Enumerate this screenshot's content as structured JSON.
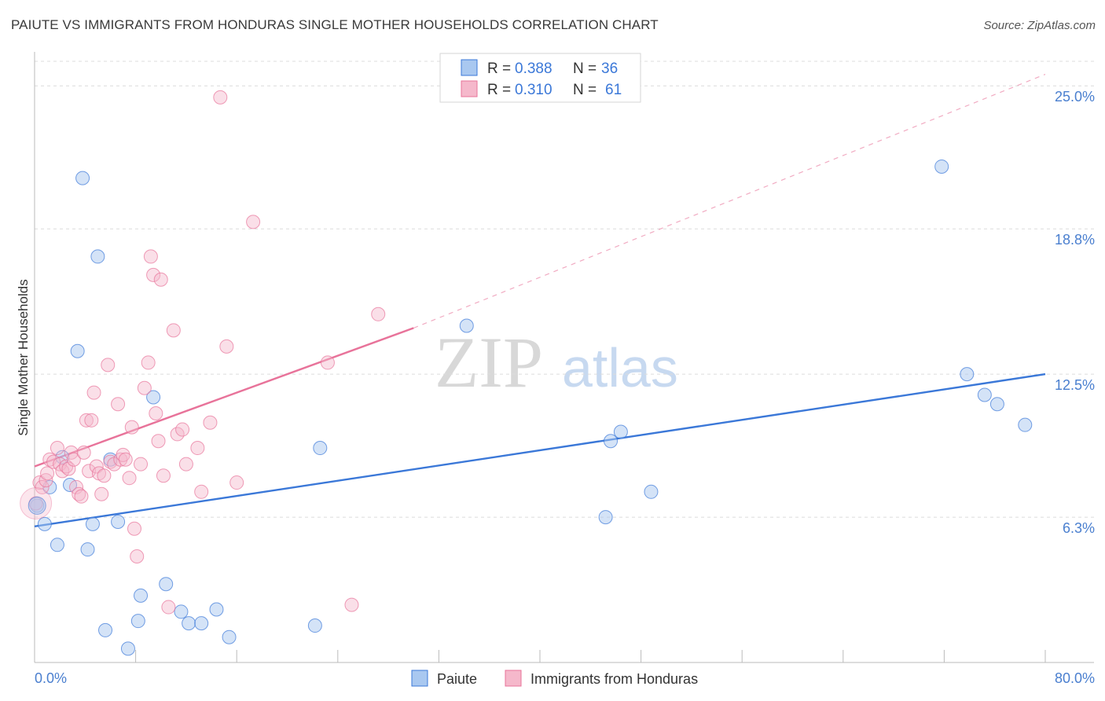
{
  "header": {
    "title": "PAIUTE VS IMMIGRANTS FROM HONDURAS SINGLE MOTHER HOUSEHOLDS CORRELATION CHART",
    "source": "Source: ZipAtlas.com"
  },
  "colors": {
    "blue": "#3b78d8",
    "blue_fill": "#a9c8f0",
    "pink": "#e8739a",
    "pink_fill": "#f5b8cb",
    "axis_label": "#4a7fcf"
  },
  "legend": {
    "rows": [
      {
        "r_label": "R =",
        "r_value": "0.388",
        "n_label": "N =",
        "n_value": "36"
      },
      {
        "r_label": "R =",
        "r_value": "0.310",
        "n_label": "N =",
        "n_value": "61"
      }
    ]
  },
  "bottom_legend": {
    "items": [
      "Paiute",
      "Immigrants from Honduras"
    ]
  },
  "chart_data": {
    "type": "scatter",
    "xlabel": "",
    "ylabel": "Single Mother Households",
    "xlim": [
      0,
      80
    ],
    "ylim": [
      0,
      26.2
    ],
    "x_tick_labels": [
      "0.0%",
      "80.0%"
    ],
    "y_ticks": [
      6.3,
      12.5,
      18.8,
      25.0
    ],
    "y_tick_labels": [
      "6.3%",
      "12.5%",
      "18.8%",
      "25.0%"
    ],
    "grid": "horizontal dashed",
    "watermark": "ZIPatlas",
    "series": [
      {
        "name": "Paiute",
        "color": "#3b78d8",
        "trend": {
          "x0": 0,
          "y0": 5.9,
          "x1": 80,
          "y1": 12.5,
          "dashed_to": null
        },
        "points": [
          [
            0.2,
            6.8
          ],
          [
            0.8,
            6.0
          ],
          [
            1.2,
            7.6
          ],
          [
            1.8,
            5.1
          ],
          [
            2.2,
            8.9
          ],
          [
            2.8,
            7.7
          ],
          [
            3.4,
            13.5
          ],
          [
            3.8,
            21.0
          ],
          [
            4.2,
            4.9
          ],
          [
            4.6,
            6.0
          ],
          [
            5.0,
            17.6
          ],
          [
            5.6,
            1.4
          ],
          [
            6.0,
            8.8
          ],
          [
            6.6,
            6.1
          ],
          [
            7.4,
            0.6
          ],
          [
            8.2,
            1.8
          ],
          [
            8.4,
            2.9
          ],
          [
            9.4,
            11.5
          ],
          [
            10.4,
            3.4
          ],
          [
            11.6,
            2.2
          ],
          [
            12.2,
            1.7
          ],
          [
            13.2,
            1.7
          ],
          [
            14.4,
            2.3
          ],
          [
            15.4,
            1.1
          ],
          [
            22.2,
            1.6
          ],
          [
            22.6,
            9.3
          ],
          [
            34.2,
            14.6
          ],
          [
            45.2,
            6.3
          ],
          [
            45.6,
            9.6
          ],
          [
            46.4,
            10.0
          ],
          [
            48.8,
            7.4
          ],
          [
            71.8,
            21.5
          ],
          [
            73.8,
            12.5
          ],
          [
            75.2,
            11.6
          ],
          [
            76.2,
            11.2
          ],
          [
            78.4,
            10.3
          ]
        ]
      },
      {
        "name": "Immigrants from Honduras",
        "color": "#e8739a",
        "trend": {
          "x0": 0,
          "y0": 8.5,
          "x1": 30,
          "y1": 14.5,
          "dashed_to": {
            "x": 80,
            "y": 25.5
          }
        },
        "points": [
          [
            0.1,
            6.9
          ],
          [
            0.4,
            7.8
          ],
          [
            0.6,
            7.6
          ],
          [
            0.9,
            7.9
          ],
          [
            1.0,
            8.2
          ],
          [
            1.2,
            8.8
          ],
          [
            1.5,
            8.7
          ],
          [
            1.8,
            9.3
          ],
          [
            2.0,
            8.6
          ],
          [
            2.2,
            8.3
          ],
          [
            2.5,
            8.5
          ],
          [
            2.7,
            8.4
          ],
          [
            2.9,
            9.1
          ],
          [
            3.1,
            8.8
          ],
          [
            3.3,
            7.6
          ],
          [
            3.5,
            7.3
          ],
          [
            3.7,
            7.2
          ],
          [
            3.9,
            9.1
          ],
          [
            4.1,
            10.5
          ],
          [
            4.3,
            8.3
          ],
          [
            4.5,
            10.5
          ],
          [
            4.7,
            11.7
          ],
          [
            4.9,
            8.5
          ],
          [
            5.1,
            8.2
          ],
          [
            5.3,
            7.3
          ],
          [
            5.5,
            8.1
          ],
          [
            5.8,
            12.9
          ],
          [
            6.0,
            8.7
          ],
          [
            6.3,
            8.6
          ],
          [
            6.6,
            11.2
          ],
          [
            6.8,
            8.8
          ],
          [
            7.0,
            9.0
          ],
          [
            7.2,
            8.8
          ],
          [
            7.5,
            8.0
          ],
          [
            7.7,
            10.2
          ],
          [
            7.9,
            5.8
          ],
          [
            8.1,
            4.6
          ],
          [
            8.4,
            8.6
          ],
          [
            8.7,
            11.9
          ],
          [
            9.0,
            13.0
          ],
          [
            9.2,
            17.6
          ],
          [
            9.4,
            16.8
          ],
          [
            9.6,
            10.8
          ],
          [
            9.8,
            9.6
          ],
          [
            10.0,
            16.6
          ],
          [
            10.2,
            8.1
          ],
          [
            10.6,
            2.4
          ],
          [
            11.0,
            14.4
          ],
          [
            11.3,
            9.9
          ],
          [
            11.7,
            10.1
          ],
          [
            12.0,
            8.6
          ],
          [
            12.9,
            9.3
          ],
          [
            13.2,
            7.4
          ],
          [
            13.9,
            10.4
          ],
          [
            14.7,
            24.5
          ],
          [
            15.2,
            13.7
          ],
          [
            16.0,
            7.8
          ],
          [
            17.3,
            19.1
          ],
          [
            23.2,
            13.0
          ],
          [
            25.1,
            2.5
          ],
          [
            27.2,
            15.1
          ]
        ]
      }
    ]
  }
}
